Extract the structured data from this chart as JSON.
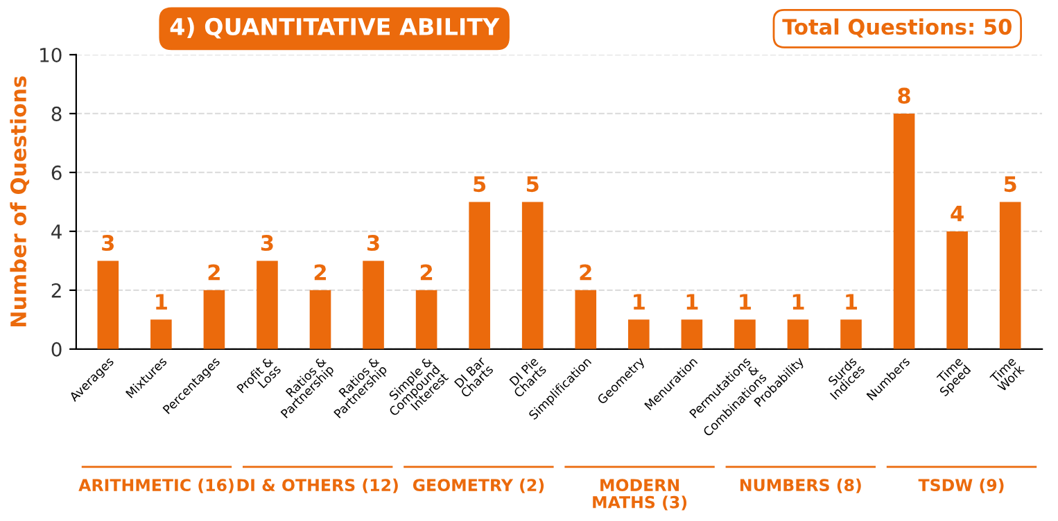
{
  "chart_data": {
    "type": "bar",
    "title": "4) QUANTITATIVE ABILITY",
    "subtitle": "Total Questions: 50",
    "ylabel": "Number of Questions",
    "categories": [
      "Averages",
      "Mixtures",
      "Percentages",
      "Profit &\nLoss",
      "Ratios &\nPartnership",
      "Ratios &\nPartnership",
      "Simple &\nCompound\nInterest",
      "DI Bar\nCharts",
      "DI Pie\nCharts",
      "Simplification",
      "Geometry",
      "Menuration",
      "Permutations\n&\nCombinations",
      "Probability",
      "Surds\nIndices",
      "Numbers",
      "Time\nSpeed",
      "Time\nWork"
    ],
    "values": [
      3,
      1,
      2,
      3,
      2,
      3,
      2,
      5,
      5,
      2,
      1,
      1,
      1,
      1,
      1,
      8,
      4,
      5
    ],
    "color": "#eb6a0c",
    "ylim": [
      0,
      10
    ],
    "yticks": [
      0,
      2,
      4,
      6,
      8,
      10
    ],
    "grid": "y",
    "data_labels": true,
    "annotations": [
      "ARITHMETIC (16)",
      "DI & OTHERS (12)",
      "GEOMETRY (2)",
      "MODERN\nMATHS (3)",
      "NUMBERS (8)",
      "TSDW (9)"
    ]
  }
}
